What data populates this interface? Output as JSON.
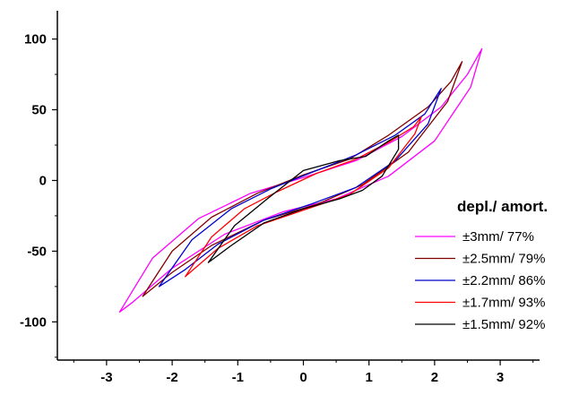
{
  "chart_data": {
    "type": "line",
    "title": "",
    "xlabel": "",
    "ylabel": "",
    "xlim": [
      -3.75,
      3.6
    ],
    "ylim": [
      -127,
      120
    ],
    "x_ticks": [
      -3,
      -2,
      -1,
      0,
      1,
      2,
      3
    ],
    "x_tick_labels": [
      "-3",
      "-2",
      "-1",
      "0",
      "1",
      "2",
      "3"
    ],
    "y_ticks": [
      -100,
      -50,
      0,
      50,
      100
    ],
    "y_tick_labels": [
      "-100",
      "-50",
      "0",
      "50",
      "100"
    ],
    "grid": false,
    "legend": {
      "title": "depl./ amort.",
      "placement": "right"
    },
    "series": [
      {
        "name": "±3mm/ 77%",
        "color": "#ff00ff",
        "x": [
          -2.8,
          -2.3,
          -1.6,
          -0.8,
          0,
          0.8,
          1.5,
          2.1,
          2.5,
          2.72,
          2.55,
          2.0,
          1.3,
          0.5,
          -0.3,
          -1.2,
          -2.0,
          -2.6,
          -2.8
        ],
        "y": [
          -93,
          -55,
          -27,
          -9,
          2,
          14,
          31,
          52,
          75,
          93,
          66,
          28,
          3,
          -13,
          -22,
          -38,
          -62,
          -86,
          -93
        ]
      },
      {
        "name": "±2.5mm/ 79%",
        "color": "#800000",
        "x": [
          -2.45,
          -2.0,
          -1.4,
          -0.7,
          0,
          0.7,
          1.3,
          1.9,
          2.25,
          2.42,
          2.2,
          1.6,
          0.9,
          0.2,
          -0.6,
          -1.4,
          -2.0,
          -2.45
        ],
        "y": [
          -82,
          -50,
          -26,
          -9,
          4,
          15,
          32,
          52,
          70,
          84,
          56,
          20,
          -3,
          -17,
          -28,
          -46,
          -65,
          -82
        ]
      },
      {
        "name": "±2.2mm/ 86%",
        "color": "#0000cc",
        "x": [
          -2.2,
          -1.7,
          -1.1,
          -0.5,
          0.2,
          0.8,
          1.4,
          1.85,
          2.1,
          1.9,
          1.4,
          0.8,
          0.1,
          -0.6,
          -1.3,
          -1.8,
          -2.2
        ],
        "y": [
          -75,
          -42,
          -20,
          -6,
          7,
          18,
          32,
          47,
          65,
          40,
          14,
          -5,
          -17,
          -28,
          -45,
          -63,
          -75
        ]
      },
      {
        "name": "±1.7mm/ 93%",
        "color": "#ff0000",
        "x": [
          -1.8,
          -1.4,
          -0.9,
          -0.4,
          0.2,
          0.8,
          1.3,
          1.68,
          1.8,
          1.7,
          1.3,
          0.7,
          0.0,
          -0.7,
          -1.3,
          -1.8
        ],
        "y": [
          -68,
          -40,
          -20,
          -8,
          5,
          15,
          27,
          38,
          45,
          33,
          9,
          -10,
          -21,
          -32,
          -48,
          -68
        ]
      },
      {
        "name": "±1.5mm/ 92%",
        "color": "#000000",
        "x": [
          -1.45,
          -1.05,
          -0.55,
          0.0,
          0.55,
          0.95,
          1.3,
          1.45,
          1.45,
          1.2,
          0.9,
          0.55,
          0.0,
          -0.6,
          -1.1,
          -1.45
        ],
        "y": [
          -58,
          -32,
          -13,
          7,
          14,
          17,
          28,
          32,
          22,
          3,
          -7,
          -13,
          -20,
          -30,
          -46,
          -58
        ]
      }
    ]
  }
}
